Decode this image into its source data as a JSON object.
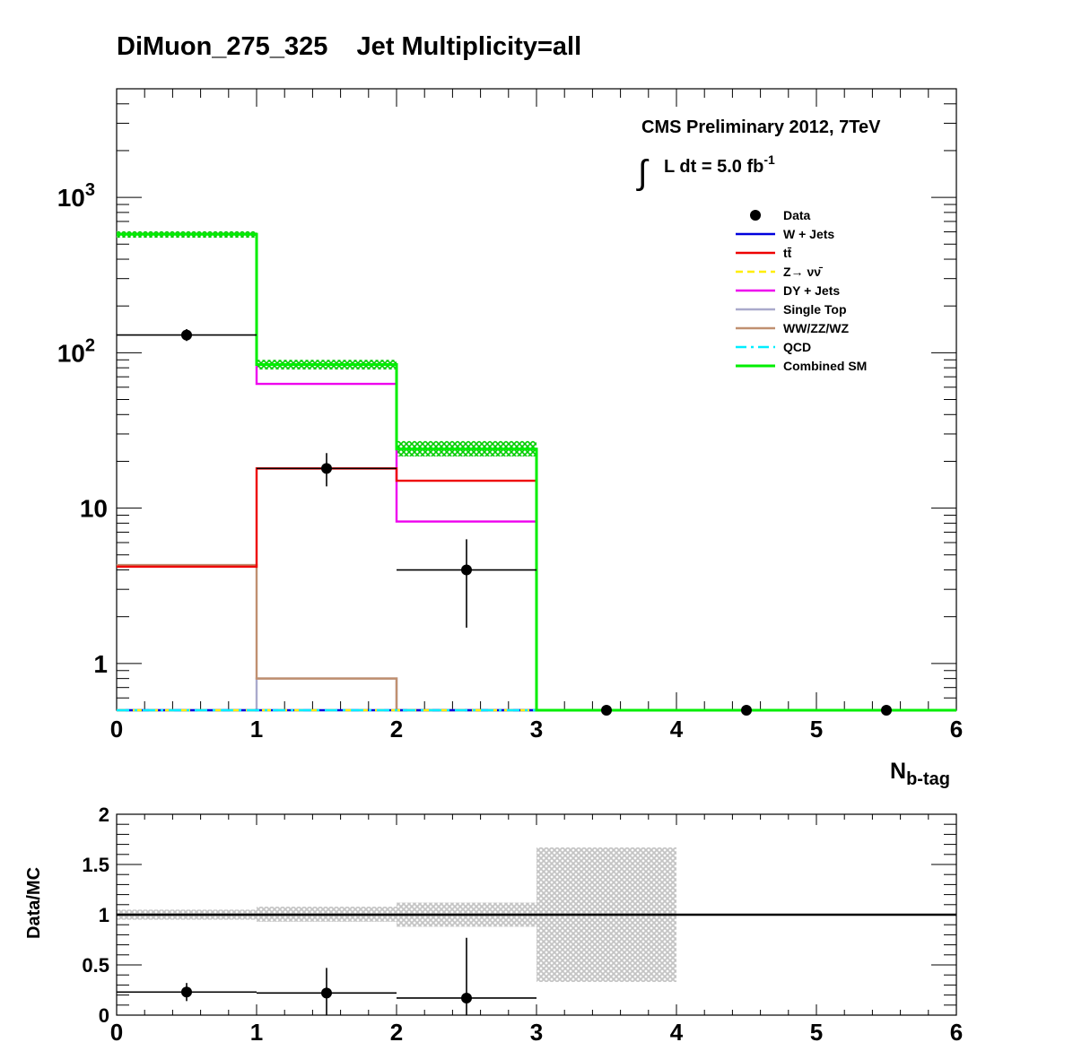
{
  "title": "DiMuon_275_325    Jet Multiplicity=all",
  "chart_data": [
    {
      "type": "histogram",
      "name": "main",
      "yscale": "log",
      "xlim": [
        0,
        6
      ],
      "ylim": [
        0.5,
        5000
      ],
      "x_ticks": [
        "0",
        "1",
        "2",
        "3",
        "4",
        "5",
        "6"
      ],
      "y_ticks": [
        {
          "value": 1,
          "label": "1"
        },
        {
          "value": 10,
          "label": "10"
        },
        {
          "value": 100,
          "label": "10",
          "exp": "2"
        },
        {
          "value": 1000,
          "label": "10",
          "exp": "3"
        }
      ],
      "xlabel": "N",
      "xlabel_sub": "b-tag",
      "annotation": {
        "line1": "CMS Preliminary 2012, 7TeV",
        "line2_prefix": "L dt = 5.0 fb",
        "line2_exp": "-1"
      },
      "bin_edges": [
        0,
        1,
        2,
        3,
        4,
        5,
        6
      ],
      "series": [
        {
          "name": "W + Jets",
          "color": "#0000dd",
          "style": "solid",
          "values": [
            0.5,
            0.5,
            0.5,
            0.5,
            0.5,
            0.5
          ]
        },
        {
          "name": "tt̄",
          "color": "#ee0000",
          "style": "solid",
          "values": [
            4.2,
            18,
            15,
            0.5,
            0.5,
            0.5
          ]
        },
        {
          "name": "Z→ νν̄",
          "color": "#ffee00",
          "style": "dashed",
          "values": [
            0.5,
            0.5,
            0.5,
            0.5,
            0.5,
            0.5
          ]
        },
        {
          "name": "DY + Jets",
          "color": "#ee00ee",
          "style": "solid",
          "values": [
            580,
            63,
            8.2,
            0.5,
            0.5,
            0.5
          ]
        },
        {
          "name": "Single Top",
          "color": "#aaaacc",
          "style": "solid",
          "values": [
            0.5,
            0.8,
            0.5,
            0.5,
            0.5,
            0.5
          ]
        },
        {
          "name": "WW/ZZ/WZ",
          "color": "#c09070",
          "style": "solid",
          "values": [
            4.3,
            0.8,
            0.5,
            0.5,
            0.5,
            0.5
          ]
        },
        {
          "name": "QCD",
          "color": "#00eeff",
          "style": "dashdot",
          "values": [
            0.5,
            0.5,
            0.5,
            0.5,
            0.5,
            0.5
          ]
        },
        {
          "name": "Combined SM",
          "color": "#00ee00",
          "style": "solid",
          "width": 3,
          "values": [
            580,
            84,
            24,
            0.5,
            0.5,
            0.5
          ],
          "band_low": [
            550,
            78,
            21.5,
            0.5,
            0.5,
            0.5
          ],
          "band_high": [
            605,
            90,
            27,
            0.5,
            0.5,
            0.5
          ]
        }
      ],
      "data_points": [
        {
          "x": 0.5,
          "xerr": 0.5,
          "y": 130,
          "ylow": 119,
          "yhigh": 142
        },
        {
          "x": 1.5,
          "xerr": 0.5,
          "y": 18,
          "ylow": 13.8,
          "yhigh": 22.6
        },
        {
          "x": 2.5,
          "xerr": 0.5,
          "y": 4,
          "ylow": 1.7,
          "yhigh": 6.3
        },
        {
          "x": 3.5,
          "xerr": 0,
          "y": 0.5,
          "ylow": 0.5,
          "yhigh": 0.5
        },
        {
          "x": 4.5,
          "xerr": 0,
          "y": 0.5,
          "ylow": 0.5,
          "yhigh": 0.5
        },
        {
          "x": 5.5,
          "xerr": 0,
          "y": 0.5,
          "ylow": 0.5,
          "yhigh": 0.5
        }
      ],
      "legend": {
        "placement": "top-right",
        "entries": [
          "Data",
          "W + Jets",
          "tt̄",
          "Z→ νν̄",
          "DY + Jets",
          "Single Top",
          "WW/ZZ/WZ",
          "QCD",
          "Combined SM"
        ]
      }
    },
    {
      "type": "histogram",
      "name": "ratio",
      "yscale": "linear",
      "xlim": [
        0,
        6
      ],
      "ylim": [
        0,
        2
      ],
      "ylabel": "Data/MC",
      "x_ticks": [
        "0",
        "1",
        "2",
        "3",
        "4",
        "5",
        "6"
      ],
      "y_ticks": [
        {
          "value": 0,
          "label": "0"
        },
        {
          "value": 0.5,
          "label": "0.5"
        },
        {
          "value": 1,
          "label": "1"
        },
        {
          "value": 1.5,
          "label": "1.5"
        },
        {
          "value": 2,
          "label": "2"
        }
      ],
      "reference_line": 1,
      "uncertainty_band": [
        {
          "x0": 0,
          "x1": 1,
          "low": 0.95,
          "high": 1.05
        },
        {
          "x0": 1,
          "x1": 2,
          "low": 0.93,
          "high": 1.08
        },
        {
          "x0": 2,
          "x1": 3,
          "low": 0.88,
          "high": 1.12
        },
        {
          "x0": 3,
          "x1": 4,
          "low": 0.33,
          "high": 1.67
        }
      ],
      "data_points": [
        {
          "x": 0.5,
          "xerr": 0.5,
          "y": 0.23,
          "ylow": 0.14,
          "yhigh": 0.32
        },
        {
          "x": 1.5,
          "xerr": 0.5,
          "y": 0.22,
          "ylow": 0.0,
          "yhigh": 0.47
        },
        {
          "x": 2.5,
          "xerr": 0.5,
          "y": 0.17,
          "ylow": 0.0,
          "yhigh": 0.77
        }
      ]
    }
  ]
}
